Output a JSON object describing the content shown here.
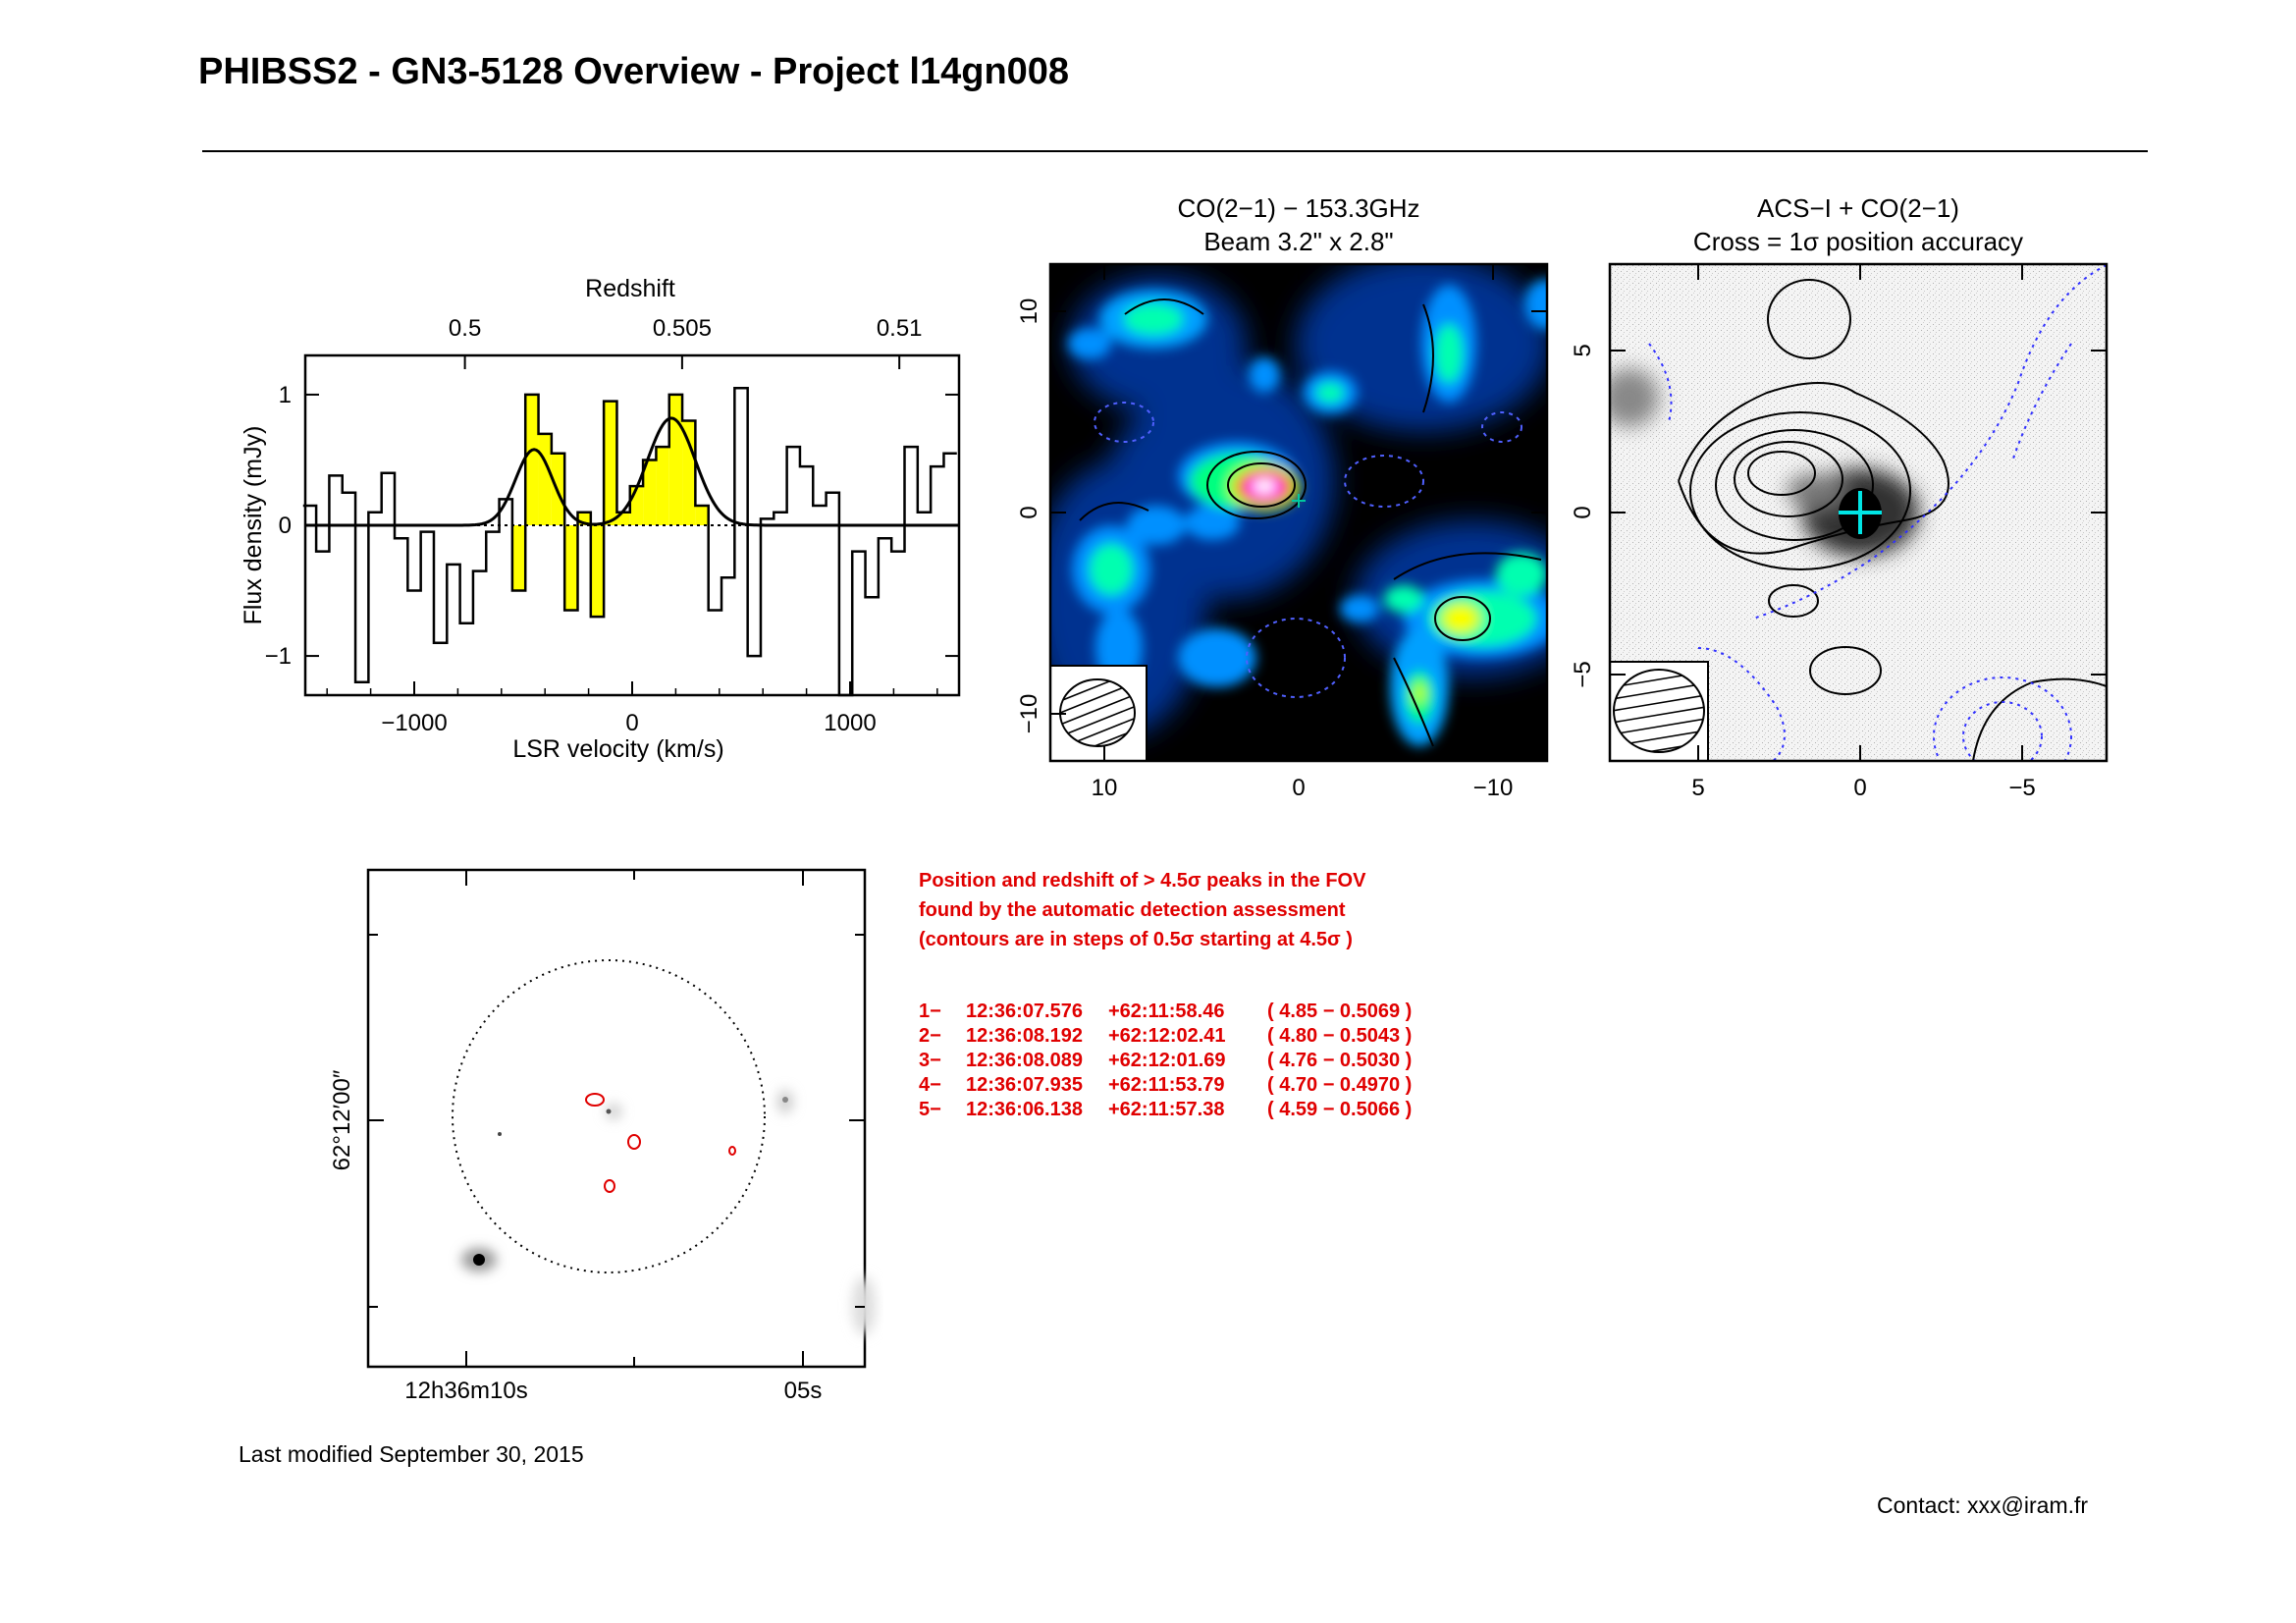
{
  "page": {
    "title": "PHIBSS2 - GN3-5128 Overview - Project l14gn008",
    "last_modified": "Last modified September 30, 2015",
    "contact": "Contact: xxx@iram.fr"
  },
  "notes": {
    "line1": "Position and redshift of > 4.5σ peaks in the FOV",
    "line2": "found by the automatic detection assessment",
    "line3": "(contours are in steps of 0.5σ starting at 4.5σ )",
    "peaks": [
      {
        "id": "1−",
        "ra": "12:36:07.576",
        "dec": "+62:11:58.46",
        "snr_z": "( 4.85 − 0.5069 )"
      },
      {
        "id": "2−",
        "ra": "12:36:08.192",
        "dec": "+62:12:02.41",
        "snr_z": "( 4.80 − 0.5043 )"
      },
      {
        "id": "3−",
        "ra": "12:36:08.089",
        "dec": "+62:12:01.69",
        "snr_z": "( 4.76 − 0.5030 )"
      },
      {
        "id": "4−",
        "ra": "12:36:07.935",
        "dec": "+62:11:53.79",
        "snr_z": "( 4.70 − 0.4970 )"
      },
      {
        "id": "5−",
        "ra": "12:36:06.138",
        "dec": "+62:11:57.38",
        "snr_z": "( 4.59 − 0.5066 )"
      }
    ]
  },
  "chart_data": [
    {
      "type": "bar",
      "subtype": "histogram-spectrum",
      "xlabel": "LSR velocity (km/s)",
      "ylabel": "Flux density (mJy)",
      "top_axis_label": "Redshift",
      "top_tick_labels": [
        "0.5",
        "0.505",
        "0.51"
      ],
      "top_tick_values": [
        0.5,
        0.505,
        0.51
      ],
      "x_tick_labels": [
        "−1000",
        "0",
        "1000"
      ],
      "y_tick_labels": [
        "−1",
        "0",
        "1"
      ],
      "xlim": [
        -1500,
        1500
      ],
      "ylim": [
        -1.3,
        1.3
      ],
      "highlight_color": "#ffff00",
      "channel_width": 60,
      "x": [
        -1480,
        -1420,
        -1360,
        -1300,
        -1240,
        -1180,
        -1120,
        -1060,
        -1000,
        -940,
        -880,
        -820,
        -760,
        -700,
        -640,
        -580,
        -520,
        -460,
        -400,
        -340,
        -280,
        -220,
        -160,
        -100,
        -40,
        20,
        80,
        140,
        200,
        260,
        320,
        380,
        440,
        500,
        560,
        620,
        680,
        740,
        800,
        860,
        920,
        980,
        1040,
        1100,
        1160,
        1220,
        1280,
        1340,
        1400,
        1460
      ],
      "values": [
        0.15,
        -0.2,
        0.38,
        0.25,
        -1.2,
        0.1,
        0.4,
        -0.1,
        -0.5,
        -0.05,
        -0.9,
        -0.3,
        -0.75,
        -0.35,
        -0.05,
        0.2,
        -0.5,
        1.0,
        0.7,
        0.55,
        -0.65,
        0.1,
        -0.7,
        0.95,
        0.1,
        0.3,
        0.5,
        0.6,
        1.0,
        0.8,
        0.15,
        -0.65,
        -0.4,
        1.05,
        -1.0,
        0.05,
        0.1,
        0.6,
        0.45,
        0.15,
        0.25,
        -1.3,
        -0.2,
        -0.55,
        -0.1,
        -0.2,
        0.6,
        0.1,
        0.45,
        0.55
      ],
      "highlighted_ranges": [
        [
          -520,
          -100
        ],
        [
          -40,
          320
        ]
      ],
      "gaussian_fit": [
        {
          "center": -450,
          "amplitude": 0.58,
          "sigma": 85
        },
        {
          "center": 180,
          "amplitude": 0.82,
          "sigma": 110
        }
      ]
    },
    {
      "type": "heatmap",
      "title": "CO(2−1) − 153.3GHz",
      "subtitle": "Beam 3.2\" x 2.8\"",
      "x_tick_labels": [
        "10",
        "0",
        "−10"
      ],
      "y_tick_labels": [
        "10",
        "0",
        "−10"
      ],
      "xlim": [
        13,
        -13
      ],
      "ylim": [
        -13,
        13
      ],
      "colormap": [
        "#000000",
        "#000080",
        "#0080ff",
        "#00ffc0",
        "#00ff40",
        "#c0ff00",
        "#ffff00",
        "#ff0000",
        "#ff40ff",
        "#ffffff"
      ]
    },
    {
      "type": "heatmap",
      "title": "ACS−I + CO(2−1)",
      "subtitle": "Cross = 1σ position accuracy",
      "x_tick_labels": [
        "5",
        "0",
        "−5"
      ],
      "y_tick_labels": [
        "5",
        "0",
        "−5"
      ],
      "xlim": [
        7.5,
        -7.5
      ],
      "ylim": [
        -7.5,
        7.5
      ],
      "cross_color": "#00e5e5",
      "negative_contour_color": "#3030ff"
    },
    {
      "type": "heatmap",
      "subtype": "field-image",
      "x_tick_labels": [
        "12h36m10s",
        "05s"
      ],
      "y_tick_labels": [
        "62°12′00″"
      ],
      "contour_color": "#e00000"
    }
  ]
}
